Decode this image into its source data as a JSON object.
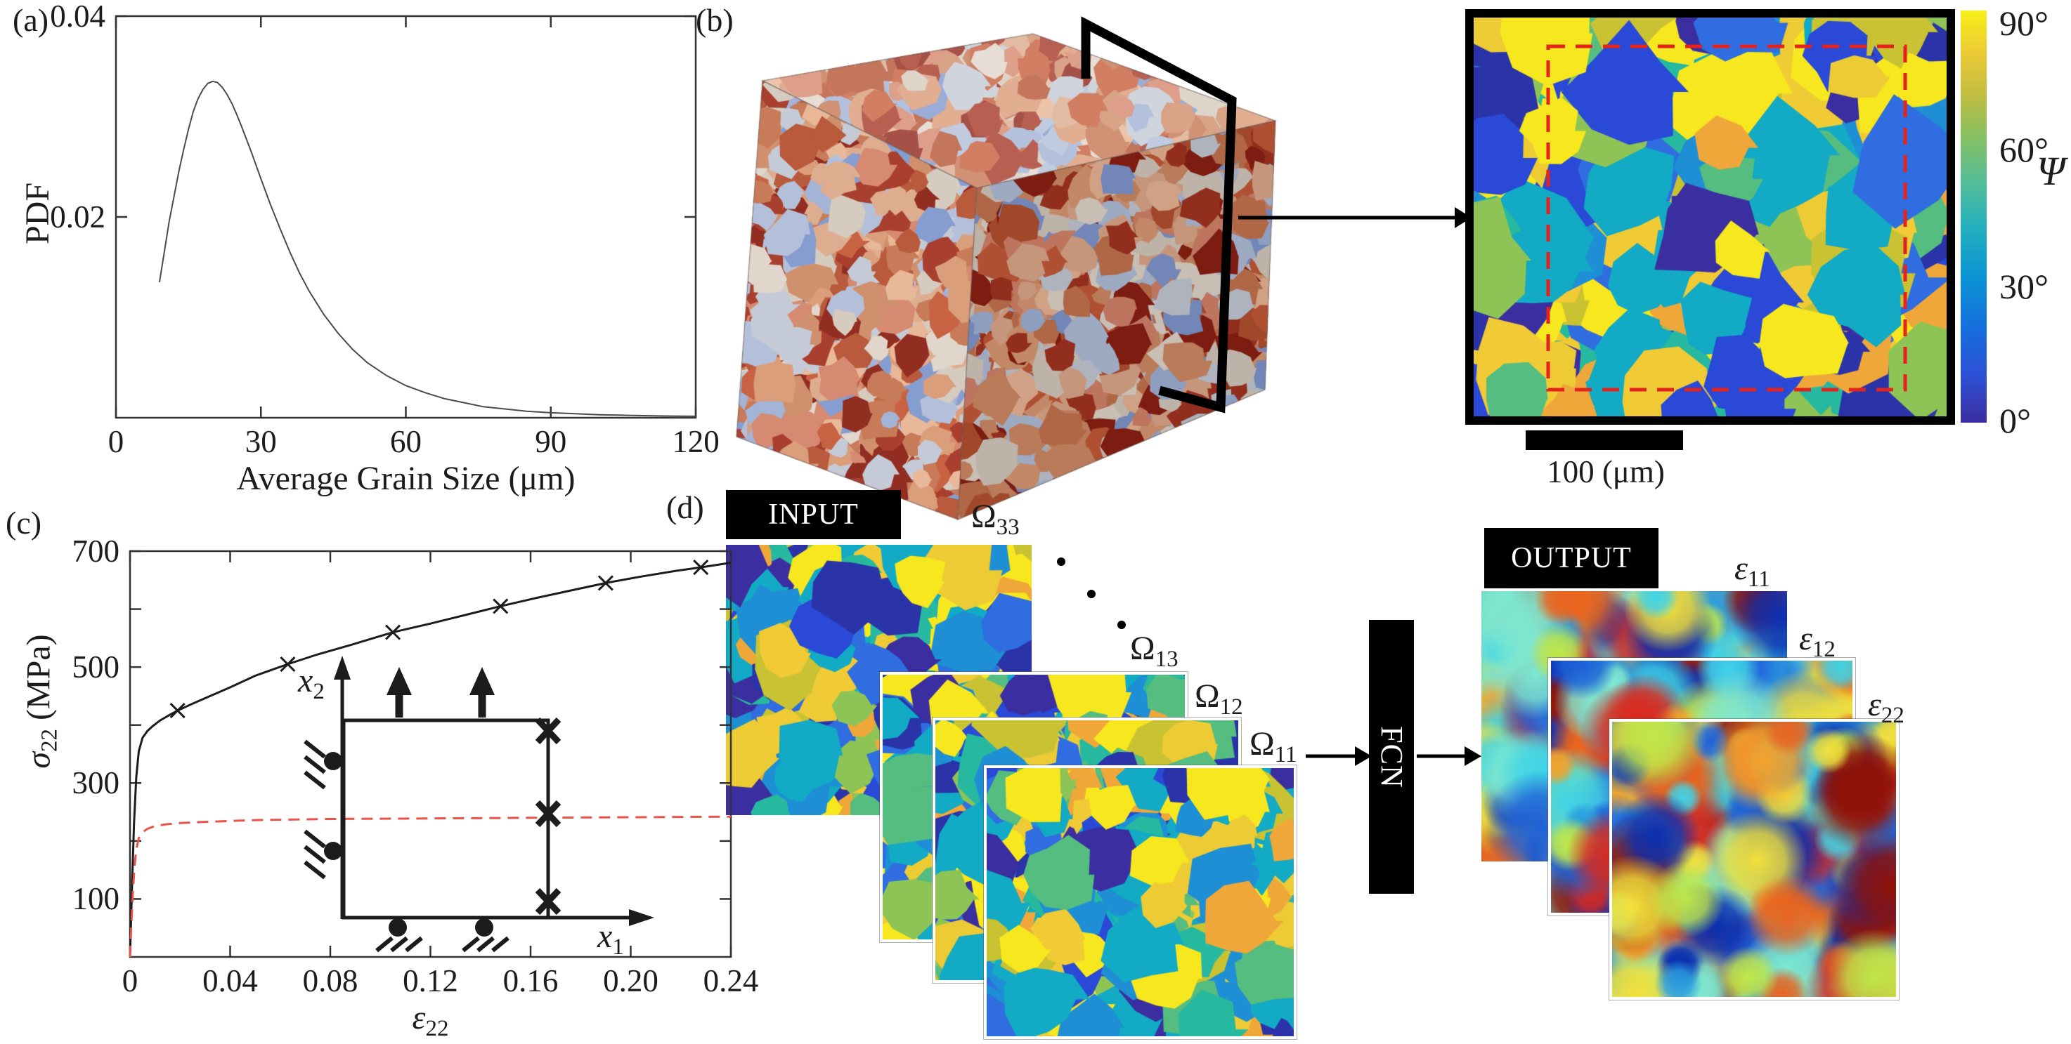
{
  "figure_labels": {
    "a": "(a)",
    "b": "(b)",
    "c": "(c)",
    "d": "(d)"
  },
  "panel_b": {
    "colorbar": {
      "labels": [
        "90°",
        "60°",
        "30°",
        "0°"
      ],
      "symbol": "Ψ"
    },
    "scale_bar": "100 (μm)"
  },
  "panel_d": {
    "input_label": "INPUT",
    "output_label": "OUTPUT",
    "fcn_label": "FCN",
    "input_maps": [
      {
        "base": "Ω",
        "sub": "33"
      },
      {
        "base": "Ω",
        "sub": "13"
      },
      {
        "base": "Ω",
        "sub": "12"
      },
      {
        "base": "Ω",
        "sub": "11"
      }
    ],
    "output_maps": [
      {
        "base": "ε",
        "sub": "11"
      },
      {
        "base": "ε",
        "sub": "12"
      },
      {
        "base": "ε",
        "sub": "22"
      }
    ],
    "ellipsis_dots": 3
  },
  "chart_data": [
    {
      "id": "grain-size-pdf",
      "type": "line",
      "title": "",
      "xlabel": "Average Grain Size (μm)",
      "ylabel": "PDF",
      "xlim": [
        0,
        120
      ],
      "ylim": [
        0,
        0.04
      ],
      "grid": false,
      "xticks": [
        {
          "v": 0,
          "label": "0"
        },
        {
          "v": 30,
          "label": "30"
        },
        {
          "v": 60,
          "label": "60"
        },
        {
          "v": 90,
          "label": "90"
        },
        {
          "v": 120,
          "label": "120"
        }
      ],
      "yticks": [
        {
          "v": 0.02,
          "label": "0.02"
        },
        {
          "v": 0.04,
          "label": "0.04"
        }
      ],
      "series": [
        {
          "name": "pdf_curve",
          "color": "#4a4a4a",
          "width": 2,
          "style": "solid",
          "points": [
            [
              9,
              0.0135
            ],
            [
              10,
              0.0165
            ],
            [
              11,
              0.0195
            ],
            [
              12,
              0.022
            ],
            [
              13,
              0.0245
            ],
            [
              14,
              0.0267
            ],
            [
              15,
              0.0287
            ],
            [
              16,
              0.0305
            ],
            [
              17,
              0.0318
            ],
            [
              18,
              0.0327
            ],
            [
              19,
              0.0333
            ],
            [
              20,
              0.0335
            ],
            [
              21,
              0.0334
            ],
            [
              22,
              0.0329
            ],
            [
              23,
              0.0322
            ],
            [
              24,
              0.0313
            ],
            [
              25,
              0.0302
            ],
            [
              26,
              0.029
            ],
            [
              28,
              0.0265
            ],
            [
              30,
              0.0238
            ],
            [
              32,
              0.0212
            ],
            [
              34,
              0.0188
            ],
            [
              36,
              0.0165
            ],
            [
              38,
              0.0144
            ],
            [
              40,
              0.0126
            ],
            [
              43,
              0.0103
            ],
            [
              46,
              0.0084
            ],
            [
              49,
              0.0068
            ],
            [
              52,
              0.0055
            ],
            [
              56,
              0.0042
            ],
            [
              60,
              0.0032
            ],
            [
              64,
              0.0025
            ],
            [
              68,
              0.0019
            ],
            [
              72,
              0.0015
            ],
            [
              76,
              0.0011
            ],
            [
              80,
              0.0009
            ],
            [
              85,
              0.00065
            ],
            [
              90,
              0.0005
            ],
            [
              95,
              0.0004
            ],
            [
              100,
              0.0003
            ],
            [
              105,
              0.00025
            ],
            [
              110,
              0.0002
            ],
            [
              115,
              0.00017
            ],
            [
              120,
              0.00015
            ]
          ]
        }
      ]
    },
    {
      "id": "stress-strain",
      "type": "line",
      "title": "",
      "xlabel": {
        "sym": "ε",
        "sub": "22"
      },
      "ylabel": {
        "sym": "σ",
        "sub": "22",
        "rest": " (MPa)"
      },
      "xlim": [
        0,
        0.24
      ],
      "ylim": [
        0,
        700
      ],
      "grid": false,
      "xticks": [
        {
          "v": 0,
          "label": "0"
        },
        {
          "v": 0.04,
          "label": "0.04"
        },
        {
          "v": 0.08,
          "label": "0.08"
        },
        {
          "v": 0.12,
          "label": "0.12"
        },
        {
          "v": 0.16,
          "label": "0.16"
        },
        {
          "v": 0.2,
          "label": "0.20"
        },
        {
          "v": 0.24,
          "label": "0.24"
        }
      ],
      "yticks": [
        {
          "v": 100,
          "label": "100"
        },
        {
          "v": 200
        },
        {
          "v": 300,
          "label": "300"
        },
        {
          "v": 400
        },
        {
          "v": 500,
          "label": "500"
        },
        {
          "v": 600
        },
        {
          "v": 700,
          "label": "700"
        }
      ],
      "series": [
        {
          "name": "polycrystal_curve_black",
          "color": "#1c1c1c",
          "width": 3,
          "style": "solid",
          "marker": "x",
          "points": [
            [
              0,
              0
            ],
            [
              0.0008,
              120
            ],
            [
              0.0016,
              230
            ],
            [
              0.0025,
              310
            ],
            [
              0.0035,
              355
            ],
            [
              0.005,
              378
            ],
            [
              0.007,
              390
            ],
            [
              0.009,
              398
            ],
            [
              0.012,
              408
            ],
            [
              0.016,
              418
            ],
            [
              0.019,
              425
            ],
            [
              0.025,
              437
            ],
            [
              0.032,
              450
            ],
            [
              0.04,
              465
            ],
            [
              0.05,
              485
            ],
            [
              0.063,
              505
            ],
            [
              0.075,
              522
            ],
            [
              0.088,
              538
            ],
            [
              0.105,
              560
            ],
            [
              0.12,
              575
            ],
            [
              0.135,
              591
            ],
            [
              0.148,
              605
            ],
            [
              0.162,
              619
            ],
            [
              0.176,
              632
            ],
            [
              0.19,
              645
            ],
            [
              0.204,
              656
            ],
            [
              0.218,
              666
            ],
            [
              0.228,
              672
            ],
            [
              0.24,
              680
            ]
          ],
          "marker_points": [
            [
              0.019,
              425
            ],
            [
              0.063,
              505
            ],
            [
              0.105,
              560
            ],
            [
              0.148,
              605
            ],
            [
              0.19,
              645
            ],
            [
              0.228,
              672
            ]
          ]
        },
        {
          "name": "reference_curve_red_dashed",
          "color": "#e8544a",
          "width": 3,
          "style": "dashed",
          "points": [
            [
              0,
              0
            ],
            [
              0.0006,
              60
            ],
            [
              0.0012,
              115
            ],
            [
              0.0018,
              155
            ],
            [
              0.0025,
              185
            ],
            [
              0.0035,
              205
            ],
            [
              0.005,
              215
            ],
            [
              0.007,
              221
            ],
            [
              0.01,
              226
            ],
            [
              0.015,
              229
            ],
            [
              0.02,
              231
            ],
            [
              0.03,
              233
            ],
            [
              0.05,
              236
            ],
            [
              0.08,
              238
            ],
            [
              0.12,
              239
            ],
            [
              0.16,
              240
            ],
            [
              0.2,
              241
            ],
            [
              0.24,
              242
            ]
          ]
        }
      ],
      "inset": {
        "x_axis": {
          "sym": "x",
          "sub": "1"
        },
        "y_axis": {
          "sym": "x",
          "sub": "2"
        }
      }
    }
  ],
  "colors": {
    "ink": "#1c1c1c",
    "annotation_red": "#e3231c",
    "parula_colormap": [
      "#3b2ea0",
      "#2c52d8",
      "#1472dc",
      "#0b96d4",
      "#27b1bc",
      "#52bd99",
      "#8ac05f",
      "#c3bd3f",
      "#eccb35",
      "#f8ef18"
    ],
    "grain_palette": [
      "#2a33a8",
      "#2949d6",
      "#2f6de0",
      "#1e8fd4",
      "#12aac4",
      "#27b9a0",
      "#55bd7f",
      "#8ec455",
      "#c9c232",
      "#f0cb35",
      "#f7e71e",
      "#f0a73a",
      "#3b2ea0",
      "#12aac4",
      "#f7e71e",
      "#eccb35"
    ],
    "strain_palette": [
      "#0b2fb0",
      "#1f62d9",
      "#2a9de0",
      "#3fd4e8",
      "#7fe8d0",
      "#bfe84a",
      "#f2e13c",
      "#f5a42b",
      "#e8641f",
      "#d92b1f",
      "#8f1208"
    ],
    "strain_base": "#74d6c4",
    "cube_palette": [
      "#b4502f",
      "#c4734f",
      "#d99873",
      "#e8b493",
      "#a33422",
      "#8c2014",
      "#d4c8bc",
      "#c2c8d4",
      "#9fb0d4",
      "#7f97cc",
      "#e0d4c8",
      "#ce8a64",
      "#dca88a",
      "#b0bdd8",
      "#c45a38",
      "#d4836a"
    ]
  }
}
